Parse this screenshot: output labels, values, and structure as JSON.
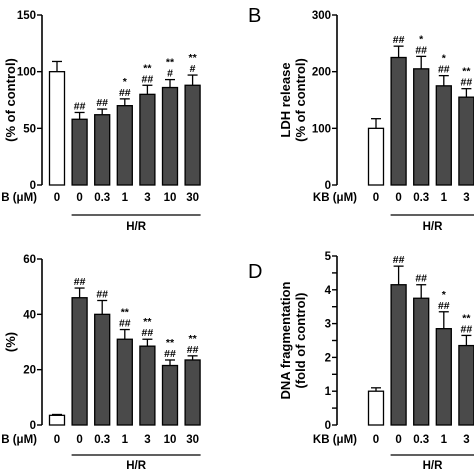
{
  "figure": {
    "condition_header": "H/R"
  },
  "chart_data": [
    {
      "panel_letter": "",
      "type": "bar",
      "ylabel_lines": [
        "(% of control)"
      ],
      "ylim": [
        0,
        150
      ],
      "yticks": [
        0,
        50,
        100,
        150
      ],
      "x_axis_prefix": "B (μM)",
      "categories": [
        "0",
        "0",
        "0.3",
        "1",
        "3",
        "10",
        "30"
      ],
      "values": [
        100,
        58,
        62,
        70,
        80,
        86,
        88
      ],
      "errors": [
        9,
        6,
        5,
        6,
        8,
        7,
        9
      ],
      "bar_fills": [
        "#ffffff",
        "#4a4a4a",
        "#4a4a4a",
        "#4a4a4a",
        "#4a4a4a",
        "#4a4a4a",
        "#4a4a4a"
      ],
      "annotations": [
        [],
        [
          "##"
        ],
        [
          "##"
        ],
        [
          "*",
          "##"
        ],
        [
          "**",
          "##"
        ],
        [
          "**",
          "#"
        ],
        [
          "**",
          "#"
        ]
      ],
      "group_label": "H/R"
    },
    {
      "panel_letter": "B",
      "type": "bar",
      "ylabel_lines": [
        "LDH release",
        "(% of control)"
      ],
      "ylim": [
        0,
        300
      ],
      "yticks": [
        0,
        100,
        200,
        300
      ],
      "x_axis_prefix": "KB (μM)",
      "categories": [
        "0",
        "0",
        "0.3",
        "1",
        "3"
      ],
      "values": [
        100,
        225,
        205,
        175,
        155
      ],
      "errors": [
        17,
        20,
        22,
        18,
        15
      ],
      "bar_fills": [
        "#ffffff",
        "#4a4a4a",
        "#4a4a4a",
        "#4a4a4a",
        "#4a4a4a"
      ],
      "annotations": [
        [],
        [
          "##"
        ],
        [
          "*",
          "##"
        ],
        [
          "*",
          "##"
        ],
        [
          "**",
          "##"
        ]
      ],
      "group_label": "H/R"
    },
    {
      "panel_letter": "",
      "type": "bar",
      "ylabel_lines": [
        "(%)"
      ],
      "ylim": [
        0,
        60
      ],
      "yticks": [
        0,
        20,
        40,
        60
      ],
      "x_axis_prefix": "B (μM)",
      "categories": [
        "0",
        "0",
        "0.3",
        "1",
        "3",
        "10",
        "30"
      ],
      "values": [
        3.5,
        46,
        40,
        31,
        28.5,
        21.5,
        23.5
      ],
      "errors": [
        0.3,
        3.5,
        5,
        3.5,
        2.5,
        2,
        1.5
      ],
      "bar_fills": [
        "#ffffff",
        "#4a4a4a",
        "#4a4a4a",
        "#4a4a4a",
        "#4a4a4a",
        "#4a4a4a",
        "#4a4a4a"
      ],
      "annotations": [
        [],
        [
          "##"
        ],
        [
          "##"
        ],
        [
          "**",
          "##"
        ],
        [
          "**",
          "##"
        ],
        [
          "**",
          "##"
        ],
        [
          "**",
          "##"
        ]
      ],
      "group_label": "H/R"
    },
    {
      "panel_letter": "D",
      "type": "bar",
      "ylabel_lines": [
        "DNA fragmentation",
        "(fold of control)"
      ],
      "ylim": [
        0,
        5
      ],
      "yticks": [
        0,
        0.5,
        1,
        1.5,
        2,
        2.5,
        3,
        3.5,
        4,
        4.5,
        5
      ],
      "ytick_labels": [
        "0",
        "",
        "1",
        "",
        "2",
        "",
        "3",
        "",
        "4",
        "",
        "5"
      ],
      "x_axis_prefix": "KB (μM)",
      "categories": [
        "0",
        "0",
        "0.3",
        "1",
        "3"
      ],
      "values": [
        1.0,
        4.15,
        3.75,
        2.85,
        2.35
      ],
      "errors": [
        0.1,
        0.55,
        0.4,
        0.5,
        0.3
      ],
      "bar_fills": [
        "#ffffff",
        "#4a4a4a",
        "#4a4a4a",
        "#4a4a4a",
        "#4a4a4a"
      ],
      "annotations": [
        [],
        [
          "##"
        ],
        [
          "##"
        ],
        [
          "*",
          "##"
        ],
        [
          "**",
          "##"
        ]
      ],
      "group_label": "H/R"
    }
  ]
}
